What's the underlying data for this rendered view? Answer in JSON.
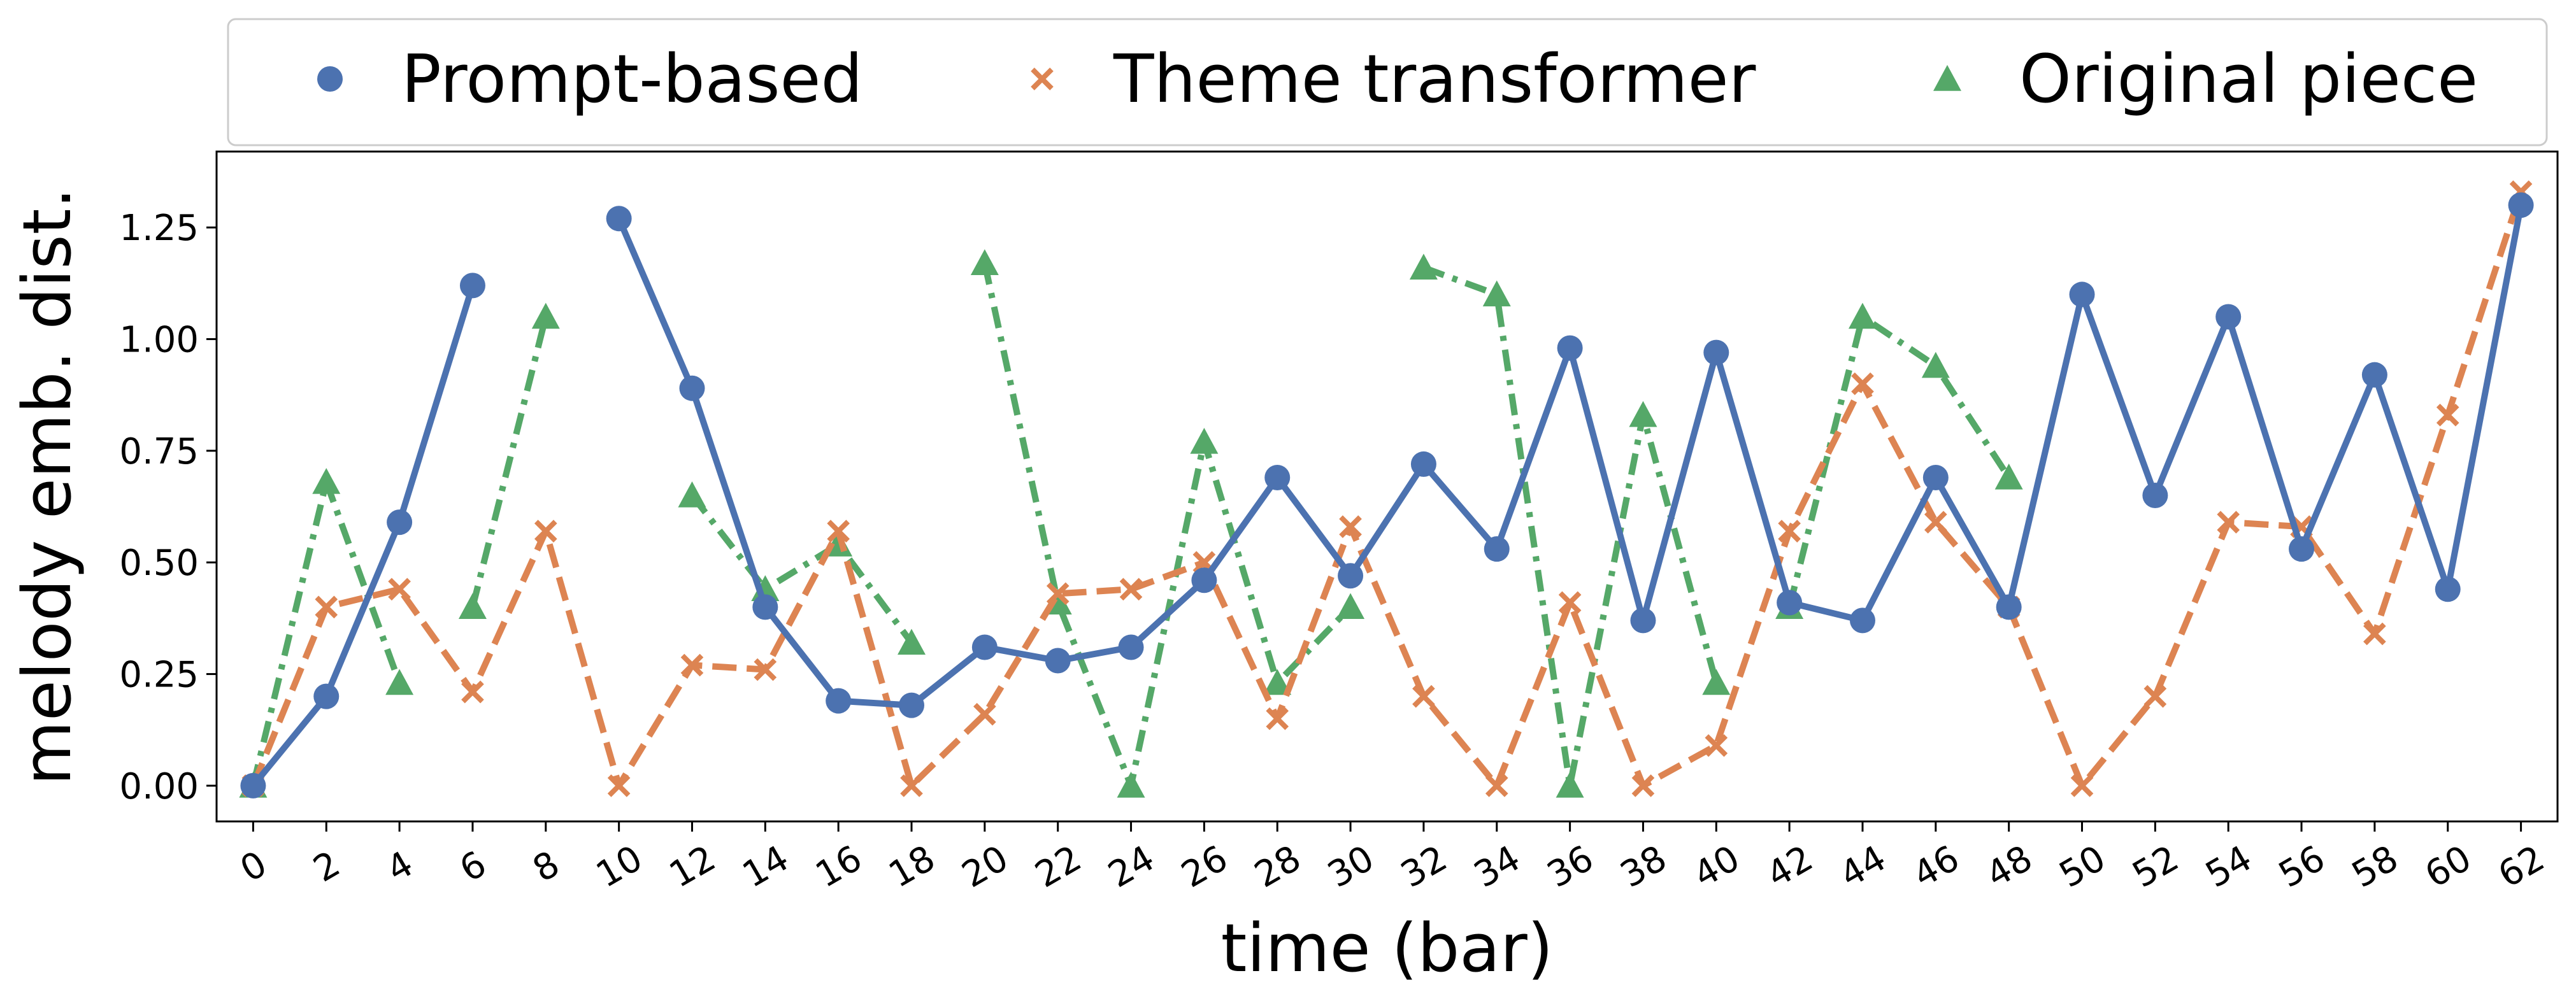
{
  "chart_data": {
    "type": "line",
    "xlabel": "time (bar)",
    "ylabel": "melody emb. dist.",
    "xticks": [
      0,
      2,
      4,
      6,
      8,
      10,
      12,
      14,
      16,
      18,
      20,
      22,
      24,
      26,
      28,
      30,
      32,
      34,
      36,
      38,
      40,
      42,
      44,
      46,
      48,
      50,
      52,
      54,
      56,
      58,
      60,
      62
    ],
    "yticks": [
      "0.00",
      "0.25",
      "0.50",
      "0.75",
      "1.00",
      "1.25"
    ],
    "xlim": [
      -1,
      63
    ],
    "ylim": [
      -0.08,
      1.42
    ],
    "legend_position": "top",
    "grid": false,
    "series": [
      {
        "name": "Prompt-based",
        "color": "#4c72b0",
        "marker": "circle",
        "line_style": "solid",
        "segments": [
          [
            [
              0,
              0.0
            ],
            [
              2,
              0.2
            ],
            [
              4,
              0.59
            ],
            [
              6,
              1.12
            ]
          ],
          [
            [
              10,
              1.27
            ],
            [
              12,
              0.89
            ],
            [
              14,
              0.4
            ],
            [
              16,
              0.19
            ],
            [
              18,
              0.18
            ],
            [
              20,
              0.31
            ],
            [
              22,
              0.28
            ],
            [
              24,
              0.31
            ],
            [
              26,
              0.46
            ],
            [
              28,
              0.69
            ],
            [
              30,
              0.47
            ],
            [
              32,
              0.72
            ],
            [
              34,
              0.53
            ],
            [
              36,
              0.98
            ],
            [
              38,
              0.37
            ],
            [
              40,
              0.97
            ],
            [
              42,
              0.41
            ],
            [
              44,
              0.37
            ],
            [
              46,
              0.69
            ],
            [
              48,
              0.4
            ],
            [
              50,
              1.1
            ],
            [
              52,
              0.65
            ],
            [
              54,
              1.05
            ],
            [
              56,
              0.53
            ],
            [
              58,
              0.92
            ],
            [
              60,
              0.44
            ],
            [
              62,
              1.3
            ]
          ]
        ]
      },
      {
        "name": "Theme transformer",
        "color": "#dd8452",
        "marker": "x",
        "line_style": "dashed",
        "segments": [
          [
            [
              0,
              0.0
            ],
            [
              2,
              0.4
            ],
            [
              4,
              0.44
            ],
            [
              6,
              0.21
            ],
            [
              8,
              0.57
            ],
            [
              10,
              0.0
            ],
            [
              12,
              0.27
            ],
            [
              14,
              0.26
            ],
            [
              16,
              0.57
            ],
            [
              18,
              0.0
            ],
            [
              20,
              0.16
            ],
            [
              22,
              0.43
            ],
            [
              24,
              0.44
            ],
            [
              26,
              0.5
            ],
            [
              28,
              0.15
            ],
            [
              30,
              0.58
            ],
            [
              32,
              0.2
            ],
            [
              34,
              0.0
            ],
            [
              36,
              0.41
            ],
            [
              38,
              0.0
            ],
            [
              40,
              0.09
            ],
            [
              42,
              0.57
            ],
            [
              44,
              0.9
            ],
            [
              46,
              0.59
            ],
            [
              48,
              0.4
            ],
            [
              50,
              0.0
            ],
            [
              52,
              0.2
            ],
            [
              54,
              0.59
            ],
            [
              56,
              0.58
            ],
            [
              58,
              0.34
            ],
            [
              60,
              0.83
            ],
            [
              62,
              1.33
            ]
          ]
        ]
      },
      {
        "name": "Original piece",
        "color": "#55a868",
        "marker": "triangle",
        "line_style": "dashdot",
        "segments": [
          [
            [
              0,
              0.0
            ],
            [
              2,
              0.68
            ],
            [
              4,
              0.23
            ]
          ],
          [
            [
              6,
              0.4
            ],
            [
              8,
              1.05
            ]
          ],
          [
            [
              12,
              0.65
            ],
            [
              14,
              0.44
            ],
            [
              16,
              0.54
            ],
            [
              18,
              0.32
            ]
          ],
          [
            [
              20,
              1.17
            ],
            [
              22,
              0.41
            ],
            [
              24,
              0.0
            ],
            [
              26,
              0.77
            ],
            [
              28,
              0.23
            ],
            [
              30,
              0.4
            ]
          ],
          [
            [
              32,
              1.16
            ],
            [
              34,
              1.1
            ],
            [
              36,
              0.0
            ],
            [
              38,
              0.83
            ],
            [
              40,
              0.23
            ]
          ],
          [
            [
              42,
              0.4
            ],
            [
              44,
              1.05
            ],
            [
              46,
              0.94
            ],
            [
              48,
              0.69
            ]
          ]
        ]
      }
    ]
  }
}
